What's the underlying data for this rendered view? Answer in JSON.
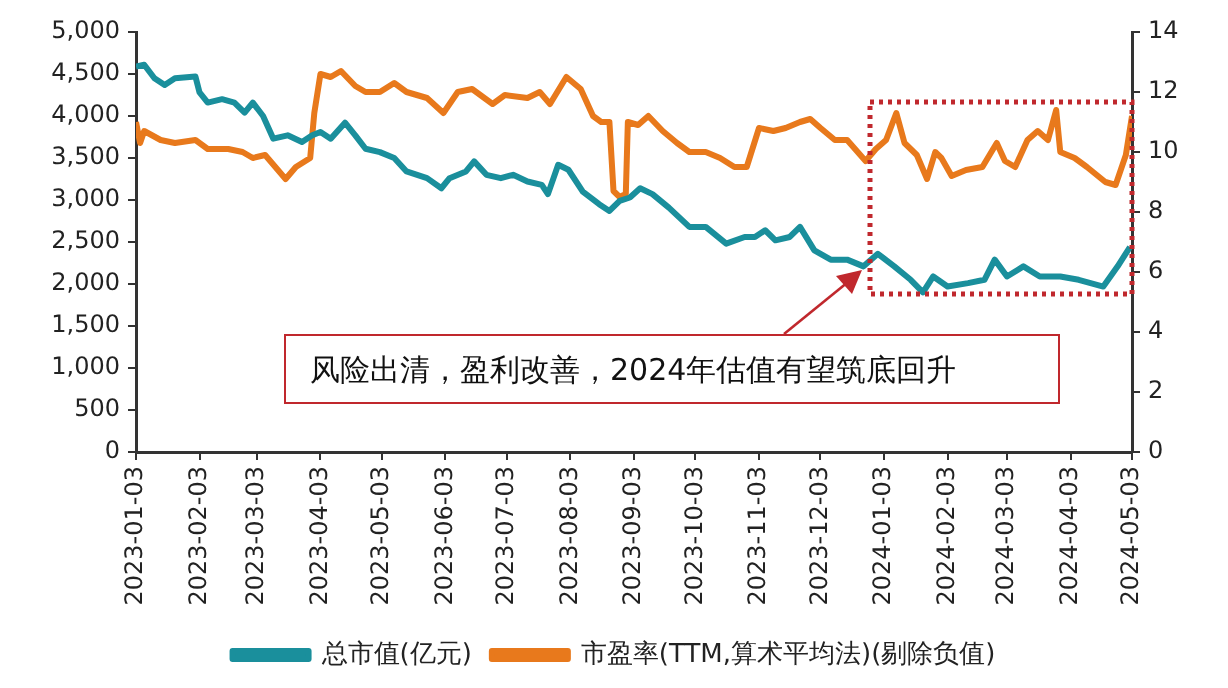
{
  "chart_data": {
    "type": "line",
    "legend": "bottom",
    "grid": false,
    "marker": "none",
    "line_style": "solid",
    "annotations": [
      "风险出清，盈利改善，2024年估值有望筑底回升"
    ],
    "xlim": [
      "2023-01-03",
      "2024-05-03"
    ],
    "xticks": [
      "2023-01-03",
      "2023-02-03",
      "2023-03-03",
      "2023-04-03",
      "2023-05-03",
      "2023-06-03",
      "2023-07-03",
      "2023-08-03",
      "2023-09-03",
      "2023-10-03",
      "2023-11-03",
      "2023-12-03",
      "2024-01-03",
      "2024-02-03",
      "2024-03-03",
      "2024-04-03",
      "2024-05-03"
    ],
    "ylim": [
      0,
      5000
    ],
    "yticks": [
      0,
      {
        "value": 500,
        "label": "500"
      },
      {
        "value": 1000,
        "label": "1,000"
      },
      {
        "value": 1500,
        "label": "1,500"
      },
      {
        "value": 2000,
        "label": "2,000"
      },
      {
        "value": 2500,
        "label": "2,500"
      },
      {
        "value": 3000,
        "label": "3,000"
      },
      {
        "value": 3500,
        "label": "3,500"
      },
      {
        "value": 4000,
        "label": "4,000"
      },
      {
        "value": 4500,
        "label": "4,500"
      },
      {
        "value": 5000,
        "label": "5,000"
      }
    ],
    "y2lim": [
      0,
      14
    ],
    "y2ticks": [
      0,
      2,
      4,
      6,
      8,
      10,
      12,
      14
    ],
    "series": [
      {
        "name": "总市值(亿元)",
        "color": "#1a8f9c",
        "x": [
          "2023-01-03",
          "2023-01-07",
          "2023-01-12",
          "2023-01-17",
          "2023-01-22",
          "2023-02-01",
          "2023-02-03",
          "2023-02-07",
          "2023-02-14",
          "2023-02-20",
          "2023-02-25",
          "2023-03-01",
          "2023-03-06",
          "2023-03-11",
          "2023-03-18",
          "2023-03-25",
          "2023-03-30",
          "2023-04-03",
          "2023-04-08",
          "2023-04-15",
          "2023-04-20",
          "2023-04-25",
          "2023-05-02",
          "2023-05-09",
          "2023-05-15",
          "2023-05-25",
          "2023-06-01",
          "2023-06-05",
          "2023-06-13",
          "2023-06-17",
          "2023-06-23",
          "2023-06-30",
          "2023-07-06",
          "2023-07-13",
          "2023-07-20",
          "2023-07-23",
          "2023-07-28",
          "2023-08-02",
          "2023-08-09",
          "2023-08-17",
          "2023-08-22",
          "2023-08-27",
          "2023-09-01",
          "2023-09-06",
          "2023-09-12",
          "2023-09-20",
          "2023-09-30",
          "2023-10-08",
          "2023-10-18",
          "2023-10-27",
          "2023-11-01",
          "2023-11-06",
          "2023-11-11",
          "2023-11-18",
          "2023-11-23",
          "2023-11-30",
          "2023-12-08",
          "2023-12-16",
          "2023-12-24",
          "2023-12-31",
          "2024-01-08",
          "2024-01-16",
          "2024-01-22",
          "2024-01-27",
          "2024-02-03",
          "2024-02-13",
          "2024-02-21",
          "2024-02-26",
          "2024-03-03",
          "2024-03-11",
          "2024-03-19",
          "2024-03-29",
          "2024-04-07",
          "2024-04-19",
          "2024-04-26",
          "2024-05-02"
        ],
        "values": [
          4590,
          4610,
          4450,
          4370,
          4450,
          4470,
          4280,
          4160,
          4200,
          4160,
          4040,
          4160,
          4000,
          3730,
          3770,
          3690,
          3770,
          3810,
          3730,
          3920,
          3770,
          3610,
          3570,
          3500,
          3340,
          3260,
          3140,
          3260,
          3340,
          3460,
          3300,
          3260,
          3300,
          3220,
          3180,
          3070,
          3420,
          3360,
          3100,
          2950,
          2870,
          2990,
          3030,
          3140,
          3070,
          2910,
          2680,
          2680,
          2480,
          2560,
          2560,
          2640,
          2520,
          2560,
          2680,
          2400,
          2290,
          2290,
          2210,
          2360,
          2210,
          2050,
          1900,
          2090,
          1970,
          2010,
          2050,
          2290,
          2090,
          2210,
          2090,
          2090,
          2050,
          1970,
          2210,
          2440
        ]
      },
      {
        "name": "市盈率(TTM,算术平均法)(剔除负值)",
        "color": "#e8791c",
        "axis": "y2",
        "x": [
          "2023-01-03",
          "2023-01-05",
          "2023-01-07",
          "2023-01-15",
          "2023-01-22",
          "2023-02-01",
          "2023-02-07",
          "2023-02-17",
          "2023-02-24",
          "2023-03-01",
          "2023-03-07",
          "2023-03-12",
          "2023-03-17",
          "2023-03-22",
          "2023-03-29",
          "2023-03-31",
          "2023-04-03",
          "2023-04-08",
          "2023-04-13",
          "2023-04-20",
          "2023-04-25",
          "2023-05-02",
          "2023-05-09",
          "2023-05-15",
          "2023-05-25",
          "2023-06-02",
          "2023-06-09",
          "2023-06-16",
          "2023-06-26",
          "2023-07-02",
          "2023-07-13",
          "2023-07-19",
          "2023-07-24",
          "2023-08-01",
          "2023-08-08",
          "2023-08-14",
          "2023-08-18",
          "2023-08-22",
          "2023-08-24",
          "2023-08-27",
          "2023-08-30",
          "2023-08-31",
          "2023-09-05",
          "2023-09-10",
          "2023-09-17",
          "2023-09-24",
          "2023-09-30",
          "2023-10-08",
          "2023-10-15",
          "2023-10-22",
          "2023-10-28",
          "2023-11-03",
          "2023-11-10",
          "2023-11-16",
          "2023-11-23",
          "2023-11-28",
          "2023-12-03",
          "2023-12-10",
          "2023-12-16",
          "2023-12-25",
          "2023-12-30",
          "2024-01-04",
          "2024-01-09",
          "2024-01-13",
          "2024-01-19",
          "2024-01-24",
          "2024-01-28",
          "2024-01-31",
          "2024-02-05",
          "2024-02-12",
          "2024-02-20",
          "2024-02-27",
          "2024-03-02",
          "2024-03-07",
          "2024-03-13",
          "2024-03-18",
          "2024-03-23",
          "2024-03-27",
          "2024-03-29",
          "2024-04-05",
          "2024-04-11",
          "2024-04-20",
          "2024-04-25",
          "2024-04-30",
          "2024-05-03"
        ],
        "values": [
          11.0,
          10.3,
          10.7,
          10.4,
          10.3,
          10.4,
          10.1,
          10.1,
          10.0,
          9.8,
          9.9,
          9.5,
          9.1,
          9.5,
          9.8,
          11.3,
          12.6,
          12.5,
          12.7,
          12.2,
          12.0,
          12.0,
          12.3,
          12.0,
          11.8,
          11.3,
          12.0,
          12.1,
          11.6,
          11.9,
          11.8,
          12.0,
          11.6,
          12.5,
          12.1,
          11.2,
          11.0,
          11.0,
          8.7,
          8.5,
          8.6,
          11.0,
          10.9,
          11.2,
          10.7,
          10.3,
          10.0,
          10.0,
          9.8,
          9.5,
          9.5,
          10.8,
          10.7,
          10.8,
          11.0,
          11.1,
          10.8,
          10.4,
          10.4,
          9.7,
          10.1,
          10.4,
          11.3,
          10.3,
          9.9,
          9.1,
          10.0,
          9.8,
          9.2,
          9.4,
          9.5,
          10.3,
          9.7,
          9.5,
          10.4,
          10.7,
          10.4,
          11.4,
          10.0,
          9.8,
          9.5,
          9.0,
          8.9,
          9.9,
          11.2
        ]
      }
    ]
  }
}
